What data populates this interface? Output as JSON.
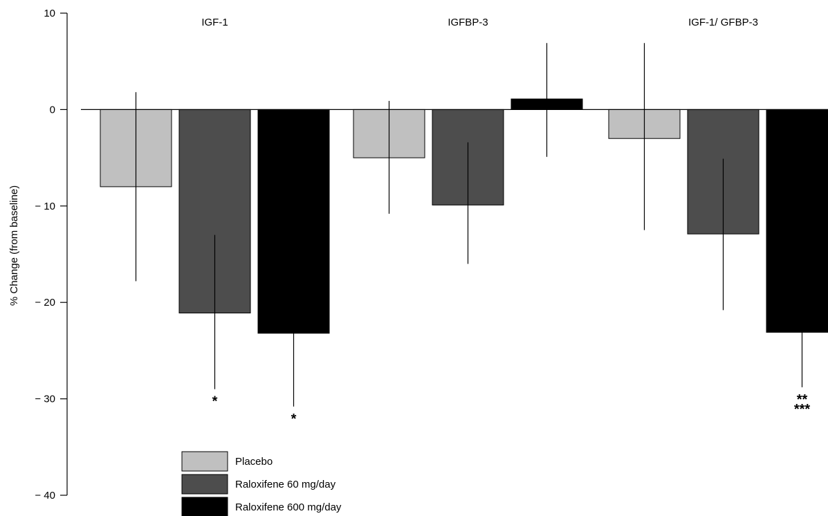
{
  "chart_data": {
    "type": "bar",
    "ylabel": "% Change (from baseline)",
    "ylim": [
      -40,
      10
    ],
    "yticks": [
      10,
      0,
      -10,
      -20,
      -30,
      -40
    ],
    "ytick_labels": [
      "10",
      "0",
      "− 10",
      "− 20",
      "− 30",
      "− 40"
    ],
    "categories": [
      "IGF-1",
      "IGFBP-3",
      "IGF-1/ GFBP-3"
    ],
    "series": [
      {
        "name": "Placebo",
        "color": "#c0c0c0",
        "values": [
          -8,
          -5,
          -3
        ],
        "error_low": [
          -17.8,
          -10.8,
          -12.5
        ],
        "error_high": [
          1.8,
          0.9,
          6.9
        ]
      },
      {
        "name": "Raloxifene 60 mg/day",
        "color": "#4d4d4d",
        "values": [
          -21.1,
          -9.9,
          -12.9
        ],
        "error_low": [
          -29.0,
          -16.0,
          -20.8
        ],
        "error_high": [
          -13.0,
          -3.4,
          -5.1
        ]
      },
      {
        "name": "Raloxifene 600 mg/day",
        "color": "#000000",
        "values": [
          -23.2,
          1.1,
          -23.1
        ],
        "error_low": [
          -30.8,
          -4.9,
          -28.8
        ],
        "error_high": [
          -23.2,
          6.9,
          -23.1
        ]
      }
    ],
    "annotations": [
      {
        "category": 0,
        "series": 1,
        "text": "*"
      },
      {
        "category": 0,
        "series": 2,
        "text": "*"
      },
      {
        "category": 2,
        "series": 2,
        "text": "**"
      },
      {
        "category": 2,
        "series": 2,
        "text": "***"
      }
    ],
    "legend_position": "bottom-left",
    "grid": false
  }
}
